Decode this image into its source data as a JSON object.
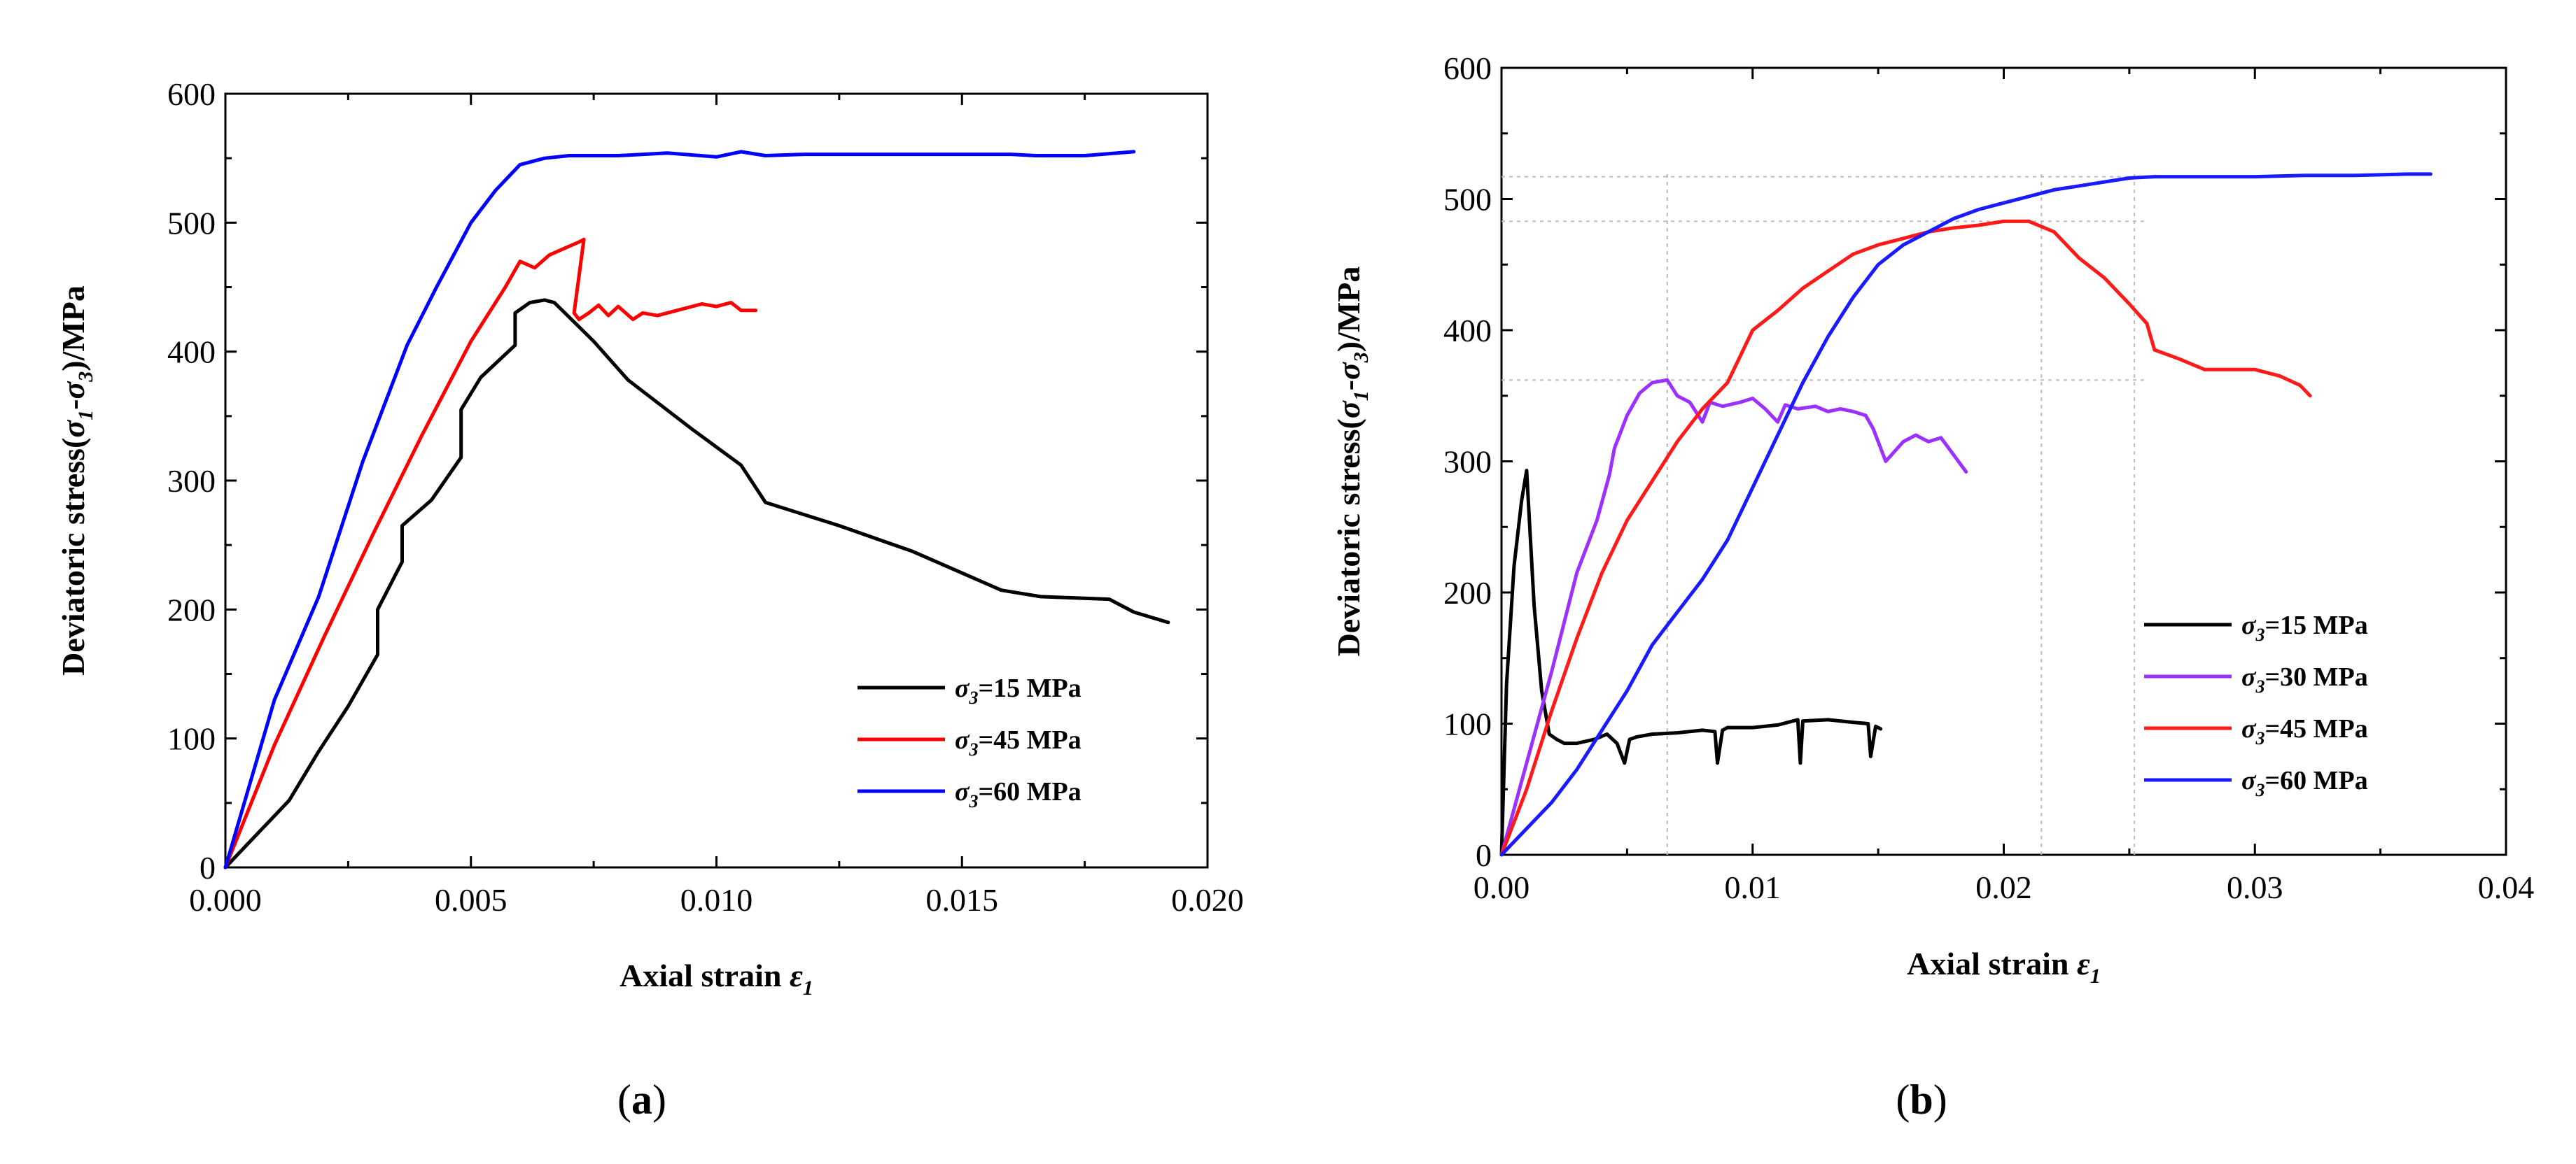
{
  "chart_data": [
    {
      "type": "line",
      "panel_label": "(a)",
      "panel_letter": "a",
      "xlabel": "Axial strain ε1",
      "xlabel_text": "Axial strain ",
      "xlabel_symbol": "ε",
      "xlabel_sub": "1",
      "ylabel": "Deviatoric stress(σ1-σ3)/MPa",
      "ylabel_text": "Deviatoric stress(",
      "ylabel_end": ")/MPa",
      "xlim": [
        0,
        0.02
      ],
      "ylim": [
        0,
        600
      ],
      "x_ticks": [
        0,
        0.005,
        0.01,
        0.015,
        0.02
      ],
      "x_tick_labels": [
        "0.000",
        "0.005",
        "0.010",
        "0.015",
        "0.020"
      ],
      "y_ticks": [
        0,
        100,
        200,
        300,
        400,
        500,
        600
      ],
      "y_tick_labels": [
        "0",
        "100",
        "200",
        "300",
        "400",
        "500",
        "600"
      ],
      "legend_position": "bottom-right",
      "series": [
        {
          "name": "σ3=15 MPa",
          "label_prefix": "σ",
          "label_sub": "3",
          "label_suffix": "=15 MPa",
          "color": "#000000",
          "x": [
            0,
            0.0013,
            0.0019,
            0.0025,
            0.0031,
            0.0031,
            0.0036,
            0.0036,
            0.0042,
            0.0048,
            0.0048,
            0.0052,
            0.0059,
            0.0059,
            0.0062,
            0.0065,
            0.0067,
            0.0075,
            0.0082,
            0.0095,
            0.0105,
            0.011,
            0.0125,
            0.014,
            0.0158,
            0.0166,
            0.018,
            0.0185,
            0.0192
          ],
          "y": [
            0,
            52,
            90,
            125,
            165,
            200,
            237,
            265,
            285,
            318,
            355,
            380,
            405,
            430,
            438,
            440,
            438,
            408,
            378,
            340,
            312,
            283,
            265,
            245,
            215,
            210,
            208,
            198,
            190
          ]
        },
        {
          "name": "σ3=45 MPa",
          "label_prefix": "σ",
          "label_sub": "3",
          "label_suffix": "=45 MPa",
          "color": "#ff0000",
          "x": [
            0,
            0.001,
            0.002,
            0.003,
            0.004,
            0.005,
            0.0057,
            0.006,
            0.0063,
            0.0066,
            0.0069,
            0.0072,
            0.0073,
            0.0071,
            0.0072,
            0.0074,
            0.0076,
            0.0078,
            0.008,
            0.0083,
            0.0085,
            0.0088,
            0.0092,
            0.0097,
            0.01,
            0.0103,
            0.0105,
            0.0108
          ],
          "y": [
            0,
            95,
            178,
            258,
            335,
            408,
            450,
            470,
            465,
            475,
            480,
            485,
            487,
            430,
            425,
            430,
            436,
            428,
            435,
            425,
            430,
            428,
            432,
            437,
            435,
            438,
            432,
            432
          ]
        },
        {
          "name": "σ3=60 MPa",
          "label_prefix": "σ",
          "label_sub": "3",
          "label_suffix": "=60 MPa",
          "color": "#0000ff",
          "x": [
            0,
            0.001,
            0.0019,
            0.0028,
            0.0037,
            0.0043,
            0.005,
            0.0055,
            0.006,
            0.0065,
            0.007,
            0.008,
            0.009,
            0.01,
            0.0105,
            0.011,
            0.0118,
            0.013,
            0.0145,
            0.016,
            0.0165,
            0.0175,
            0.0185
          ],
          "y": [
            0,
            130,
            210,
            315,
            405,
            450,
            500,
            525,
            545,
            550,
            552,
            552,
            554,
            551,
            555,
            552,
            553,
            553,
            553,
            553,
            552,
            552,
            555
          ]
        }
      ]
    },
    {
      "type": "line",
      "panel_label": "(b)",
      "panel_letter": "b",
      "xlabel": "Axial strain ε1",
      "xlabel_text": "Axial strain ",
      "xlabel_symbol": "ε",
      "xlabel_sub": "1",
      "ylabel": "Deviatoric stress(σ1-σ3)/MPa",
      "ylabel_text": "Deviatoric stress(",
      "ylabel_end": ")/MPa",
      "xlim": [
        0,
        0.04
      ],
      "ylim": [
        0,
        600
      ],
      "x_ticks": [
        0,
        0.01,
        0.02,
        0.03,
        0.04
      ],
      "x_tick_labels": [
        "0.00",
        "0.01",
        "0.02",
        "0.03",
        "0.04"
      ],
      "y_ticks": [
        0,
        100,
        200,
        300,
        400,
        500,
        600
      ],
      "y_tick_labels": [
        "0",
        "100",
        "200",
        "300",
        "400",
        "500",
        "600"
      ],
      "legend_position": "bottom-right",
      "reference_lines": {
        "y": [
          517,
          483,
          362
        ],
        "x": [
          0.0066,
          0.0215,
          0.0252
        ]
      },
      "series": [
        {
          "name": "σ3=15 MPa",
          "label_prefix": "σ",
          "label_sub": "3",
          "label_suffix": "=15 MPa",
          "color": "#000000",
          "x": [
            0,
            0.0002,
            0.0005,
            0.0008,
            0.001,
            0.0013,
            0.0016,
            0.0019,
            0.0022,
            0.0025,
            0.003,
            0.0037,
            0.0042,
            0.0046,
            0.0049,
            0.0051,
            0.0054,
            0.006,
            0.007,
            0.008,
            0.0085,
            0.0086,
            0.0088,
            0.009,
            0.01,
            0.011,
            0.0118,
            0.0119,
            0.012,
            0.013,
            0.014,
            0.0146,
            0.0147,
            0.0149,
            0.0151
          ],
          "y": [
            0,
            130,
            220,
            270,
            293,
            190,
            125,
            92,
            88,
            85,
            85,
            88,
            92,
            85,
            70,
            88,
            90,
            92,
            93,
            95,
            94,
            70,
            95,
            97,
            97,
            99,
            103,
            70,
            102,
            103,
            101,
            100,
            75,
            98,
            96
          ]
        },
        {
          "name": "σ3=30 MPa",
          "label_prefix": "σ",
          "label_sub": "3",
          "label_suffix": "=30 MPa",
          "color": "#9b30ff",
          "x": [
            0,
            0.001,
            0.002,
            0.003,
            0.0038,
            0.0043,
            0.0045,
            0.005,
            0.0055,
            0.006,
            0.0066,
            0.007,
            0.0075,
            0.008,
            0.0083,
            0.0088,
            0.0095,
            0.01,
            0.0105,
            0.011,
            0.0113,
            0.0118,
            0.0125,
            0.013,
            0.0135,
            0.014,
            0.0145,
            0.0148,
            0.0153,
            0.016,
            0.0165,
            0.017,
            0.0175,
            0.018,
            0.0185
          ],
          "y": [
            0,
            70,
            140,
            215,
            255,
            290,
            310,
            335,
            352,
            360,
            362,
            350,
            345,
            330,
            345,
            342,
            345,
            348,
            340,
            330,
            343,
            340,
            342,
            338,
            340,
            338,
            335,
            325,
            300,
            315,
            320,
            315,
            318,
            305,
            292
          ]
        },
        {
          "name": "σ3=45 MPa",
          "label_prefix": "σ",
          "label_sub": "3",
          "label_suffix": "=45 MPa",
          "color": "#ff1a1a",
          "x": [
            0,
            0.001,
            0.002,
            0.003,
            0.004,
            0.005,
            0.006,
            0.007,
            0.008,
            0.009,
            0.01,
            0.011,
            0.012,
            0.013,
            0.014,
            0.015,
            0.016,
            0.017,
            0.018,
            0.019,
            0.02,
            0.021,
            0.022,
            0.023,
            0.024,
            0.025,
            0.0257,
            0.026,
            0.027,
            0.028,
            0.029,
            0.03,
            0.031,
            0.0318,
            0.0322
          ],
          "y": [
            0,
            50,
            110,
            165,
            215,
            255,
            285,
            315,
            340,
            360,
            400,
            415,
            432,
            445,
            458,
            465,
            470,
            475,
            478,
            480,
            483,
            483,
            475,
            455,
            440,
            420,
            405,
            385,
            378,
            370,
            370,
            370,
            365,
            358,
            350
          ]
        },
        {
          "name": "σ3=60 MPa",
          "label_prefix": "σ",
          "label_sub": "3",
          "label_suffix": "=60 MPa",
          "color": "#1a1aff",
          "x": [
            0,
            0.001,
            0.002,
            0.003,
            0.004,
            0.005,
            0.006,
            0.007,
            0.008,
            0.009,
            0.01,
            0.011,
            0.012,
            0.013,
            0.014,
            0.015,
            0.016,
            0.017,
            0.018,
            0.019,
            0.02,
            0.021,
            0.022,
            0.023,
            0.024,
            0.025,
            0.026,
            0.028,
            0.03,
            0.032,
            0.034,
            0.036,
            0.037
          ],
          "y": [
            0,
            20,
            40,
            65,
            95,
            125,
            160,
            185,
            210,
            240,
            280,
            320,
            360,
            395,
            425,
            450,
            465,
            475,
            485,
            492,
            497,
            502,
            507,
            510,
            513,
            516,
            517,
            517,
            517,
            518,
            518,
            519,
            519
          ]
        }
      ]
    }
  ]
}
